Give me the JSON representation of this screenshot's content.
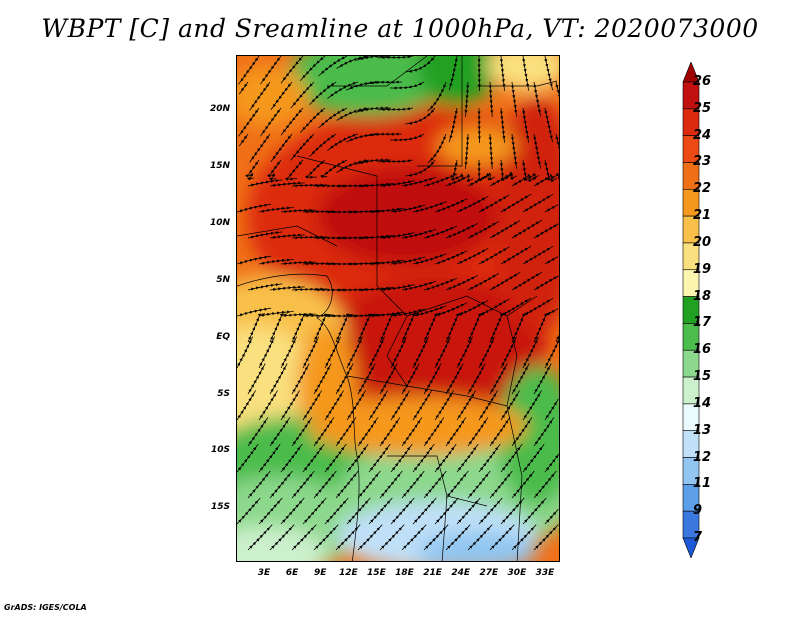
{
  "title": "WBPT [C] and Sreamline at 1000hPa, VT: 2020073000",
  "footer": "GrADS: IGES/COLA",
  "map": {
    "lat_labels": [
      "20N",
      "15N",
      "10N",
      "5N",
      "EQ",
      "5S",
      "10S",
      "15S"
    ],
    "lon_labels": [
      "3E",
      "6E",
      "9E",
      "12E",
      "15E",
      "18E",
      "21E",
      "24E",
      "27E",
      "30E",
      "33E"
    ],
    "field": "wet-bulb potential temperature",
    "overlay": "streamlines",
    "level": "1000hPa"
  },
  "colorbar": {
    "labels": [
      "26",
      "25",
      "24",
      "23",
      "22",
      "21",
      "20",
      "19",
      "18",
      "17",
      "16",
      "15",
      "14",
      "13",
      "12",
      "11",
      "9",
      "7"
    ],
    "colors": [
      "#a00000",
      "#c01010",
      "#dc2a10",
      "#ec4a14",
      "#f07018",
      "#f5981e",
      "#f8c048",
      "#fae07e",
      "#fcf5b0",
      "#22a022",
      "#4cbc4c",
      "#8cd88c",
      "#ccf0cc",
      "#eafaff",
      "#c0e0f8",
      "#92c6f0",
      "#5c9ee8",
      "#3a78e0",
      "#1f5ad6"
    ]
  }
}
